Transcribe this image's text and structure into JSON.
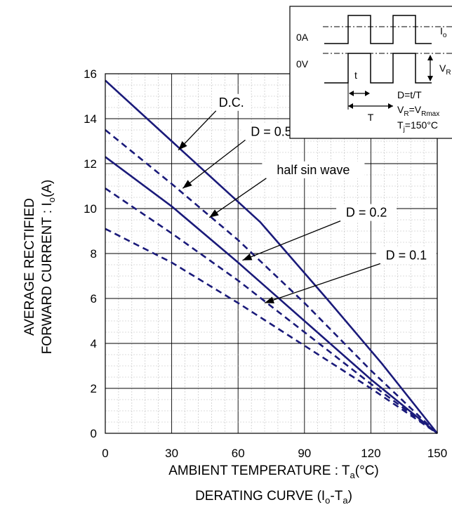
{
  "chart_data": {
    "type": "line",
    "xlabel_main": "AMBIENT TEMPERATURE : T",
    "xlabel_sub": "a",
    "xlabel_unit": "(°C)",
    "caption_main": "DERATING CURVE (I",
    "caption_sub1": "o",
    "caption_mid": "-T",
    "caption_sub2": "a",
    "caption_end": ")",
    "ylabel_line1": "AVERAGE RECTIFIED",
    "ylabel_line2_main": "FORWARD CURRENT : I",
    "ylabel_line2_sub": "o",
    "ylabel_line2_unit": "(A)",
    "xlim": [
      0,
      150
    ],
    "ylim": [
      0,
      16
    ],
    "xticks": [
      "0",
      "30",
      "60",
      "90",
      "120",
      "150"
    ],
    "yticks": [
      "0",
      "2",
      "4",
      "6",
      "8",
      "10",
      "12",
      "14",
      "16"
    ],
    "grid": true,
    "series": [
      {
        "name": "D.C.",
        "style": "solid",
        "color": "#1a1a7a",
        "x": [
          0,
          30,
          70,
          100,
          125,
          150
        ],
        "y": [
          15.7,
          13.0,
          9.4,
          6.0,
          3.1,
          0
        ]
      },
      {
        "name": "D = 0.5",
        "style": "dashed",
        "color": "#1a1a7a",
        "x": [
          0,
          30,
          60,
          90,
          120,
          150
        ],
        "y": [
          13.5,
          11.1,
          8.6,
          5.8,
          2.8,
          0
        ]
      },
      {
        "name": "half sin wave",
        "style": "solid",
        "color": "#1a1a7a",
        "x": [
          0,
          30,
          60,
          90,
          120,
          150
        ],
        "y": [
          12.3,
          10.1,
          7.6,
          5.0,
          2.4,
          0
        ]
      },
      {
        "name": "D = 0.2",
        "style": "dashed",
        "color": "#1a1a7a",
        "x": [
          0,
          30,
          60,
          90,
          120,
          150
        ],
        "y": [
          10.9,
          8.9,
          6.8,
          4.5,
          2.2,
          0
        ]
      },
      {
        "name": "D = 0.1",
        "style": "dashed",
        "color": "#1a1a7a",
        "x": [
          0,
          30,
          60,
          90,
          120,
          150
        ],
        "y": [
          9.1,
          7.6,
          5.8,
          3.9,
          2.0,
          0
        ]
      }
    ],
    "annotations": [
      {
        "text": "D.C.",
        "tx": 57,
        "ty": 14.6,
        "ax": 33,
        "ay": 12.6
      },
      {
        "text": "D = 0.5",
        "tx": 75,
        "ty": 13.3,
        "ax": 35,
        "ay": 10.9
      },
      {
        "text": "half sin wave",
        "tx": 94,
        "ty": 11.6,
        "ax": 47,
        "ay": 9.6
      },
      {
        "text": "D = 0.2",
        "tx": 118,
        "ty": 9.7,
        "ax": 62,
        "ay": 7.7
      },
      {
        "text": "D = 0.1",
        "tx": 136,
        "ty": 7.8,
        "ax": 72,
        "ay": 5.8
      }
    ]
  },
  "inset": {
    "label_0a": "0A",
    "label_0v": "0V",
    "label_io": "I",
    "label_io_sub": "o",
    "label_vr": "V",
    "label_vr_sub": "R",
    "label_t": "t",
    "label_T": "T",
    "eq_d": "D=t/T",
    "eq_vr_main": "V",
    "eq_vr_sub": "R",
    "eq_vr_eq": "=V",
    "eq_vr_sub2": "Rmax",
    "eq_tj_main": "T",
    "eq_tj_sub": "j",
    "eq_tj_val": "=150°C"
  }
}
